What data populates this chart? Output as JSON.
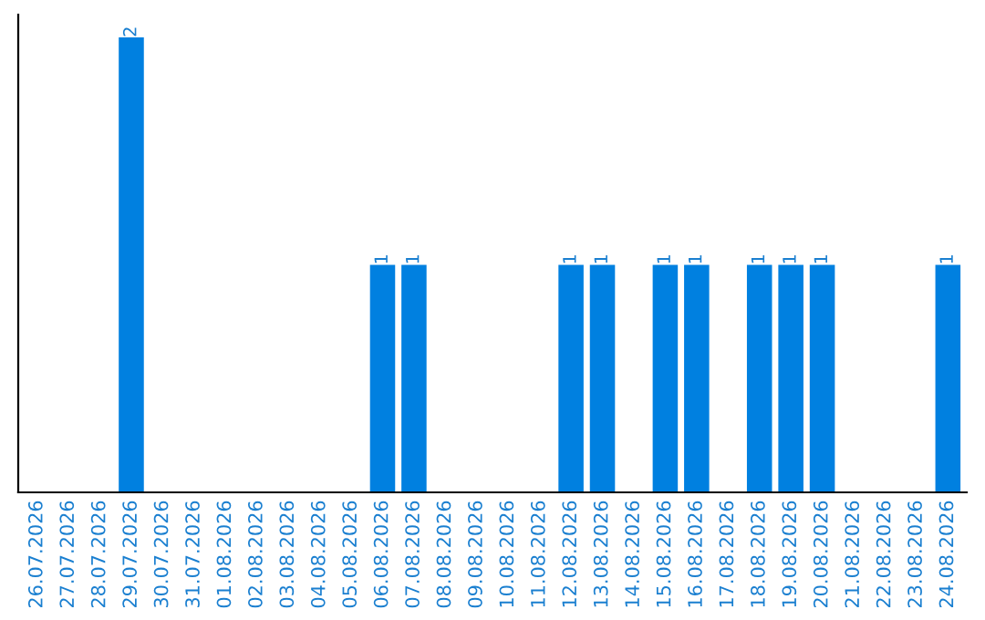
{
  "chart_data": {
    "type": "bar",
    "categories": [
      "26.07.2026",
      "27.07.2026",
      "28.07.2026",
      "29.07.2026",
      "30.07.2026",
      "31.07.2026",
      "01.08.2026",
      "02.08.2026",
      "03.08.2026",
      "04.08.2026",
      "05.08.2026",
      "06.08.2026",
      "07.08.2026",
      "08.08.2026",
      "09.08.2026",
      "10.08.2026",
      "11.08.2026",
      "12.08.2026",
      "13.08.2026",
      "14.08.2026",
      "15.08.2026",
      "16.08.2026",
      "17.08.2026",
      "18.08.2026",
      "19.08.2026",
      "20.08.2026",
      "21.08.2026",
      "22.08.2026",
      "23.08.2026",
      "24.08.2026"
    ],
    "values": [
      0,
      0,
      0,
      2,
      0,
      0,
      0,
      0,
      0,
      0,
      0,
      1,
      1,
      0,
      0,
      0,
      0,
      1,
      1,
      0,
      1,
      1,
      0,
      1,
      1,
      1,
      0,
      0,
      0,
      1
    ],
    "value_labels": [
      null,
      null,
      null,
      "2",
      null,
      null,
      null,
      null,
      null,
      null,
      null,
      "1",
      "1",
      null,
      null,
      null,
      null,
      "1",
      "1",
      null,
      "1",
      "1",
      null,
      "1",
      "1",
      "1",
      null,
      null,
      null,
      "1"
    ],
    "color": "#0080e0",
    "tick_labels": "x"
  }
}
